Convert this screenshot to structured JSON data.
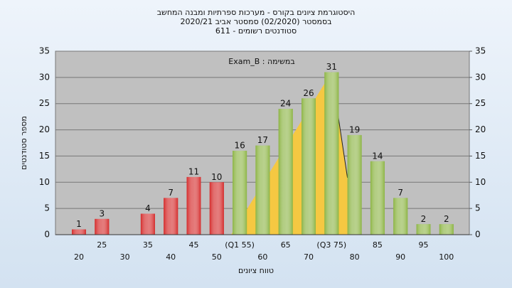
{
  "chart_data": {
    "type": "bar",
    "title": "היסטוגרמת ציונים בקורס - מערכות ספרתיות ומבנה המחשב",
    "subtitle": "בסמסטר  (02/2020)  סמסטר אביב 2020/21",
    "subtitle2": "סטודנטים רשומים - 611",
    "annotation": "במשימה : Exam_B",
    "x_label": "טווח ציונים",
    "y_label": "מספר סטודנטים",
    "categories": [
      "20",
      "25",
      "30",
      "35",
      "40",
      "45",
      "50",
      "(Q1 55)",
      "60",
      "65",
      "70",
      "(Q3 75)",
      "80",
      "85",
      "90",
      "95",
      "100"
    ],
    "values": [
      1,
      3,
      null,
      4,
      7,
      11,
      10,
      16,
      17,
      24,
      26,
      31,
      19,
      14,
      7,
      2,
      2
    ],
    "bar_colors": [
      "#d42a2a",
      "#d42a2a",
      "#d42a2a",
      "#d42a2a",
      "#d42a2a",
      "#d42a2a",
      "#d42a2a",
      "#8cb444",
      "#8cb444",
      "#8cb444",
      "#8cb444",
      "#8cb444",
      "#8cb444",
      "#8cb444",
      "#8cb444",
      "#8cb444",
      "#8cb444"
    ],
    "quartile_color": "#f5c842",
    "ylim": [
      0,
      35
    ],
    "yticks": [
      0,
      5,
      10,
      15,
      20,
      25,
      30,
      35
    ],
    "y2lim": [
      0,
      35
    ],
    "y2ticks": [
      0,
      5,
      10,
      15,
      20,
      25,
      30,
      35
    ],
    "grid": true
  }
}
